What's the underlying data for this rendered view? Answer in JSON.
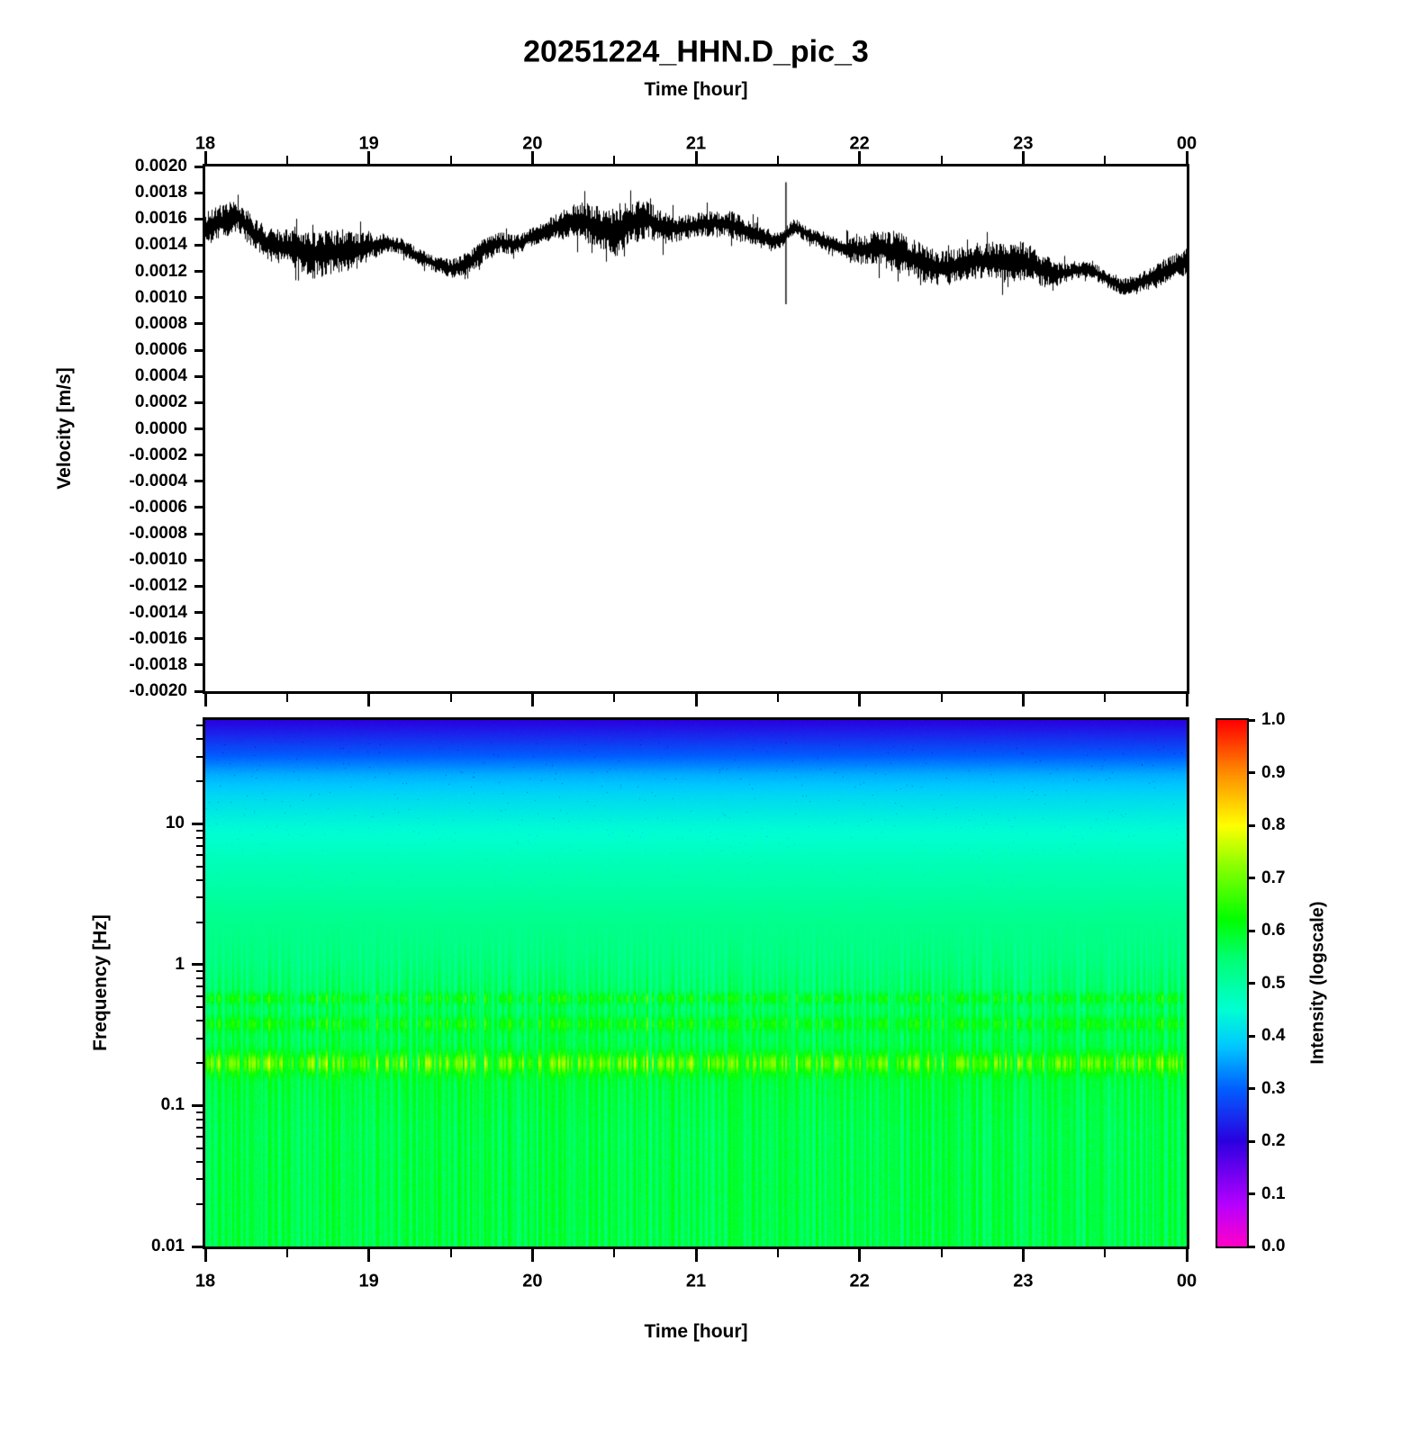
{
  "title": "20251224_HHN.D_pic_3",
  "labels": {
    "time_axis": "Time [hour]",
    "velocity_axis": "Velocity [m/s]",
    "frequency_axis": "Frequency [Hz]",
    "colorbar": "Intensity (logscale)"
  },
  "chart_data": [
    {
      "type": "line",
      "title": "20251224_HHN.D_pic_3",
      "xlabel": "Time [hour]",
      "ylabel": "Velocity [m/s]",
      "xlim": [
        18,
        24
      ],
      "ylim": [
        -0.002,
        0.002
      ],
      "x_ticks": [
        "18",
        "19",
        "20",
        "21",
        "22",
        "23",
        "00"
      ],
      "x_tick_hours": [
        18,
        19,
        20,
        21,
        22,
        23,
        24
      ],
      "y_tick_labels": [
        "0.0020",
        "0.0018",
        "0.0016",
        "0.0014",
        "0.0012",
        "0.0010",
        "0.0008",
        "0.0006",
        "0.0004",
        "0.0002",
        "0.0000",
        "-0.0002",
        "-0.0004",
        "-0.0006",
        "-0.0008",
        "-0.0010",
        "-0.0012",
        "-0.0014",
        "-0.0016",
        "-0.0018",
        "-0.0020"
      ],
      "series": [
        {
          "t0": 18,
          "dt": 0.1,
          "values": [
            0.00152,
            0.00158,
            0.00162,
            0.00148,
            0.0014,
            0.00138,
            0.00134,
            0.00133,
            0.00135,
            0.00136,
            0.00139,
            0.00142,
            0.00139,
            0.00131,
            0.00126,
            0.00122,
            0.00126,
            0.00136,
            0.00142,
            0.0014,
            0.00147,
            0.00152,
            0.00156,
            0.0016,
            0.00152,
            0.00149,
            0.00157,
            0.0016,
            0.00153,
            0.00153,
            0.00155,
            0.00157,
            0.00156,
            0.00151,
            0.00146,
            0.00143,
            0.00154,
            0.00147,
            0.00142,
            0.00138,
            0.00136,
            0.00138,
            0.00136,
            0.00131,
            0.00126,
            0.00122,
            0.00125,
            0.00128,
            0.00128,
            0.00126,
            0.00128,
            0.00122,
            0.00118,
            0.0012,
            0.00122,
            0.00115,
            0.00108,
            0.00111,
            0.00116,
            0.00122,
            0.00128
          ],
          "noise_halfwidth": 9e-05,
          "spike": {
            "hour": 21.55,
            "min": 0.00095,
            "max": 0.00188
          }
        }
      ]
    },
    {
      "type": "heatmap",
      "xlabel": "Time [hour]",
      "ylabel": "Frequency [Hz]",
      "colorbar_label": "Intensity (logscale)",
      "xlim": [
        18,
        24
      ],
      "freq_min": 0.01,
      "freq_max": 54.7,
      "y_tick_values": [
        10,
        1,
        0.1,
        0.01
      ],
      "y_tick_labels": [
        "10",
        "1",
        "0.1",
        "0.01"
      ],
      "colorbar_tick_labels": [
        "1.0",
        "0.9",
        "0.8",
        "0.7",
        "0.6",
        "0.5",
        "0.4",
        "0.3",
        "0.2",
        "0.1",
        "0.0"
      ],
      "colormap": [
        [
          0.0,
          "#ff00c8"
        ],
        [
          0.08,
          "#b400ff"
        ],
        [
          0.2,
          "#2a00e0"
        ],
        [
          0.3,
          "#0060ff"
        ],
        [
          0.38,
          "#00c8ff"
        ],
        [
          0.45,
          "#00ffd2"
        ],
        [
          0.55,
          "#00ff6e"
        ],
        [
          0.62,
          "#00ff00"
        ],
        [
          0.72,
          "#86ff00"
        ],
        [
          0.8,
          "#ffff00"
        ],
        [
          0.9,
          "#ff8c00"
        ],
        [
          1.0,
          "#ff0000"
        ]
      ],
      "profile": {
        "logf": [
          -2.0,
          -1.6,
          -1.2,
          -1.0,
          -0.85,
          -0.7,
          -0.55,
          -0.4,
          -0.28,
          -0.1,
          0.0,
          0.3,
          0.7,
          1.0,
          1.2,
          1.35,
          1.5,
          1.62,
          1.74
        ],
        "intensity": [
          0.575,
          0.575,
          0.57,
          0.575,
          0.58,
          0.585,
          0.57,
          0.565,
          0.555,
          0.545,
          0.535,
          0.52,
          0.48,
          0.44,
          0.4,
          0.36,
          0.29,
          0.245,
          0.2
        ]
      },
      "bands": [
        {
          "logf": -0.7,
          "amp": 0.075,
          "width": 0.07
        },
        {
          "logf": -0.42,
          "amp": 0.04,
          "width": 0.05
        },
        {
          "logf": -0.24,
          "amp": 0.045,
          "width": 0.04
        }
      ],
      "stripe_strength": 0.045
    }
  ]
}
